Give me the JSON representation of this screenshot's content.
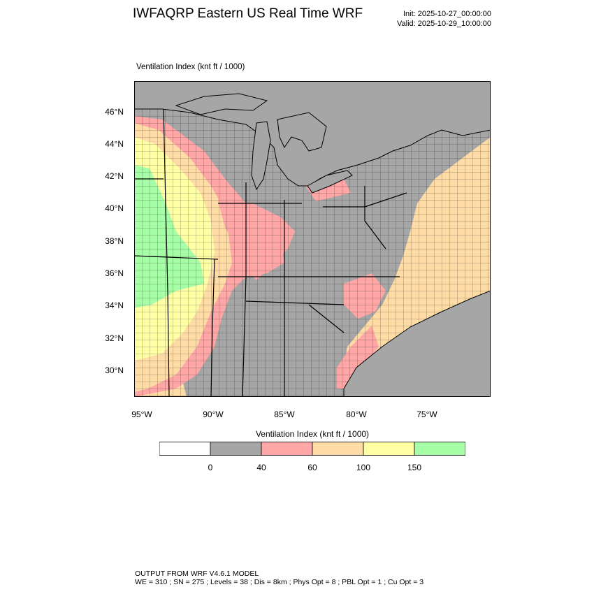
{
  "header": {
    "title": "IWFAQRP Eastern US Real Time WRF",
    "init": "Init: 2025-10-27_00:00:00",
    "valid": "Valid: 2025-10-29_10:00:00"
  },
  "map": {
    "field_label": "Ventilation Index   (knt ft / 1000)",
    "lat_labels": [
      "46°N",
      "44°N",
      "42°N",
      "40°N",
      "38°N",
      "36°N",
      "34°N",
      "32°N",
      "30°N"
    ],
    "lon_labels": [
      "95°W",
      "90°W",
      "85°W",
      "80°W",
      "75°W"
    ],
    "colors": {
      "land_low": "#a6a6a6",
      "water": "#a6a6a6",
      "pink": "#ffa6a6",
      "tan": "#ffdca6",
      "yellow": "#ffffa6",
      "green": "#a6ffa6",
      "border": "#000000"
    }
  },
  "colorbar": {
    "title": "Ventilation Index  (knt ft / 1000)",
    "colors": [
      "#ffffff",
      "#a6a6a6",
      "#ffa6a6",
      "#ffdca6",
      "#ffffa6",
      "#a6ffa6"
    ],
    "labels": [
      "0",
      "40",
      "60",
      "100",
      "150"
    ]
  },
  "footer": {
    "line1": "OUTPUT FROM WRF V4.6.1 MODEL",
    "line2": "WE = 310 ; SN = 275 ; Levels = 38 ; Dis = 8km ; Phys Opt = 8 ; PBL Opt = 1 ; Cu Opt = 3"
  }
}
